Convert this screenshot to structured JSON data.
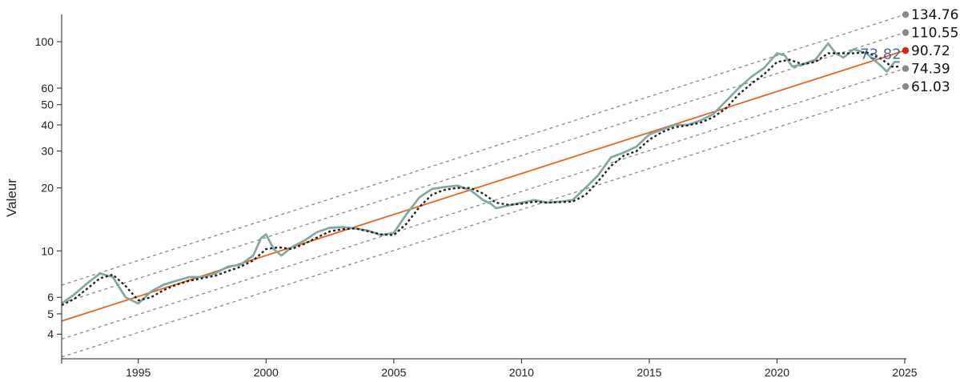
{
  "chart_data": {
    "type": "line",
    "ylabel": "Valeur",
    "xlabel": "",
    "yscale": "log",
    "ylim": [
      3.05,
      135
    ],
    "xlim": [
      1992.0,
      2025.0
    ],
    "y_ticks": [
      4,
      5,
      6,
      10,
      20,
      30,
      40,
      50,
      60,
      100
    ],
    "x_ticks": [
      1995,
      2000,
      2005,
      2010,
      2015,
      2020,
      2025
    ],
    "grid": false,
    "trend": {
      "x_start": 1992.0,
      "x_end": 2025.0,
      "center_start": 4.62,
      "center_end": 90.72,
      "band_end_values": [
        134.76,
        110.55,
        90.72,
        74.39,
        61.03
      ]
    },
    "band_labels": [
      "134.76",
      "110.55",
      "90.72",
      "74.39",
      "61.03"
    ],
    "current_label": "73.82",
    "colors": {
      "price": "#3ea6d9",
      "smooth": "#c8a15a",
      "moving_average": "#222222",
      "trend": "#e8641e",
      "band": "#888888",
      "marker_center": "#e01f1f",
      "marker_other": "#888888"
    },
    "series": [
      {
        "x": [
          1992.0,
          1992.5,
          1993.0,
          1993.5,
          1994.0,
          1994.5,
          1995.0,
          1995.5,
          1996.0,
          1996.5,
          1997.0,
          1997.5,
          1998.0,
          1998.5,
          1999.0,
          1999.5,
          1999.8,
          2000.0,
          2000.3,
          2000.6,
          2001.0,
          2001.5,
          2002.0,
          2002.5,
          2003.0,
          2003.5,
          2004.0,
          2004.5,
          2005.0,
          2005.5,
          2006.0,
          2006.5,
          2007.0,
          2007.5,
          2008.0,
          2008.5,
          2008.8,
          2009.0,
          2009.5,
          2010.0,
          2010.5,
          2011.0,
          2011.5,
          2012.0,
          2012.5,
          2013.0,
          2013.5,
          2014.0,
          2014.5,
          2015.0,
          2015.5,
          2016.0,
          2016.5,
          2017.0,
          2017.5,
          2018.0,
          2018.5,
          2019.0,
          2019.5,
          2020.0,
          2020.3,
          2020.6,
          2021.0,
          2021.5,
          2022.0,
          2022.3,
          2022.6,
          2023.0,
          2023.5,
          2024.0,
          2024.3,
          2024.6,
          2024.8
        ],
        "y": [
          5.6,
          6.2,
          7.0,
          7.8,
          7.5,
          6.0,
          5.6,
          6.4,
          6.9,
          7.2,
          7.5,
          7.5,
          7.8,
          8.4,
          8.6,
          9.5,
          11.5,
          12.0,
          10.2,
          9.5,
          10.4,
          11.2,
          12.3,
          12.9,
          13.0,
          12.8,
          12.5,
          11.9,
          12.2,
          15.0,
          18.0,
          19.8,
          20.2,
          20.5,
          19.5,
          17.5,
          16.8,
          16.0,
          16.5,
          17.0,
          17.5,
          17.0,
          17.2,
          17.5,
          20.0,
          23.0,
          28.0,
          29.5,
          31.5,
          36.0,
          38.0,
          40.0,
          40.0,
          42.0,
          45.0,
          52.0,
          60.0,
          68.0,
          75.0,
          88.0,
          86.0,
          76.0,
          78.0,
          82.0,
          98.0,
          88.0,
          84.0,
          92.0,
          88.0,
          78.0,
          72.0,
          80.0,
          80.0
        ]
      },
      {
        "name": "",
        "x": [
          1992.0,
          1992.5,
          1993.0,
          1993.5,
          1994.0,
          1994.5,
          1995.0,
          1995.5,
          1996.0,
          1996.5,
          1997.0,
          1997.5,
          1998.0,
          1998.5,
          1999.0,
          1999.5,
          2000.0,
          2000.5,
          2001.0,
          2001.5,
          2002.0,
          2002.5,
          2003.0,
          2003.5,
          2004.0,
          2004.5,
          2005.0,
          2005.5,
          2006.0,
          2006.5,
          2007.0,
          2007.5,
          2008.0,
          2008.5,
          2009.0,
          2009.5,
          2010.0,
          2010.5,
          2011.0,
          2011.5,
          2012.0,
          2012.5,
          2013.0,
          2013.5,
          2014.0,
          2014.5,
          2015.0,
          2015.5,
          2016.0,
          2016.5,
          2017.0,
          2017.5,
          2018.0,
          2018.5,
          2019.0,
          2019.5,
          2020.0,
          2020.5,
          2021.0,
          2021.5,
          2022.0,
          2022.5,
          2023.0,
          2023.5,
          2024.0,
          2024.5,
          2024.8
        ],
        "y": [
          5.5,
          5.9,
          6.6,
          7.4,
          7.7,
          6.8,
          5.8,
          6.0,
          6.5,
          6.9,
          7.2,
          7.4,
          7.6,
          8.0,
          8.4,
          9.0,
          10.2,
          10.4,
          10.2,
          10.8,
          11.6,
          12.4,
          12.7,
          12.8,
          12.4,
          12.0,
          11.9,
          13.5,
          16.2,
          18.6,
          19.6,
          20.0,
          20.0,
          18.8,
          17.0,
          16.6,
          16.8,
          17.2,
          17.0,
          17.1,
          17.2,
          18.5,
          21.5,
          25.5,
          28.5,
          30.0,
          34.0,
          37.0,
          39.0,
          39.8,
          41.0,
          43.5,
          48.0,
          56.0,
          63.0,
          70.0,
          80.0,
          82.0,
          78.0,
          80.0,
          88.0,
          88.0,
          88.0,
          89.0,
          84.0,
          76.0,
          76.0
        ]
      }
    ]
  }
}
